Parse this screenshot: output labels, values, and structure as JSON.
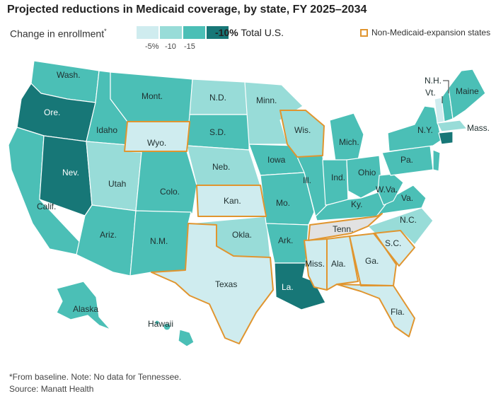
{
  "title": "Projected reductions in Medicaid coverage, by state, FY 2025–2034",
  "legend": {
    "label": "Change in enrollment",
    "label_mark": "*",
    "ticks": [
      "-5%",
      "-10",
      "-15"
    ],
    "bins": [
      "#cfecef",
      "#98dcd8",
      "#4bbfb6",
      "#177777"
    ],
    "total_value": "-10%",
    "total_label": "Total U.S.",
    "non_expansion_label": "Non-Medicaid-expansion states",
    "non_expansion_color": "#e0952f",
    "no_data_color": "#e2e2e2"
  },
  "states": {
    "wash": "Wash.",
    "ore": "Ore.",
    "calif": "Calif.",
    "idaho": "Idaho",
    "nev": "Nev.",
    "utah": "Utah",
    "ariz": "Ariz.",
    "mont": "Mont.",
    "wyo": "Wyo.",
    "colo": "Colo.",
    "nm": "N.M.",
    "nd": "N.D.",
    "sd": "S.D.",
    "neb": "Neb.",
    "kan": "Kan.",
    "okla": "Okla.",
    "texas": "Texas",
    "minn": "Minn.",
    "iowa": "Iowa",
    "mo": "Mo.",
    "ark": "Ark.",
    "la": "La.",
    "wis": "Wis.",
    "ill": "Ill.",
    "mich": "Mich.",
    "ind": "Ind.",
    "ohio": "Ohio",
    "ky": "Ky.",
    "tenn": "Tenn.",
    "miss": "Miss.",
    "ala": "Ala.",
    "ga": "Ga.",
    "fla": "Fla.",
    "sc": "S.C.",
    "nc": "N.C.",
    "va": "Va.",
    "wva": "W.Va.",
    "pa": "Pa.",
    "ny": "N.Y.",
    "vt": "Vt.",
    "nh": "N.H.",
    "maine": "Maine",
    "mass": "Mass.",
    "alaska": "Alaska",
    "hawaii": "Hawaii"
  },
  "footnote": "*From baseline. Note: No data for Tennessee.",
  "source": "Source: Manatt Health"
}
